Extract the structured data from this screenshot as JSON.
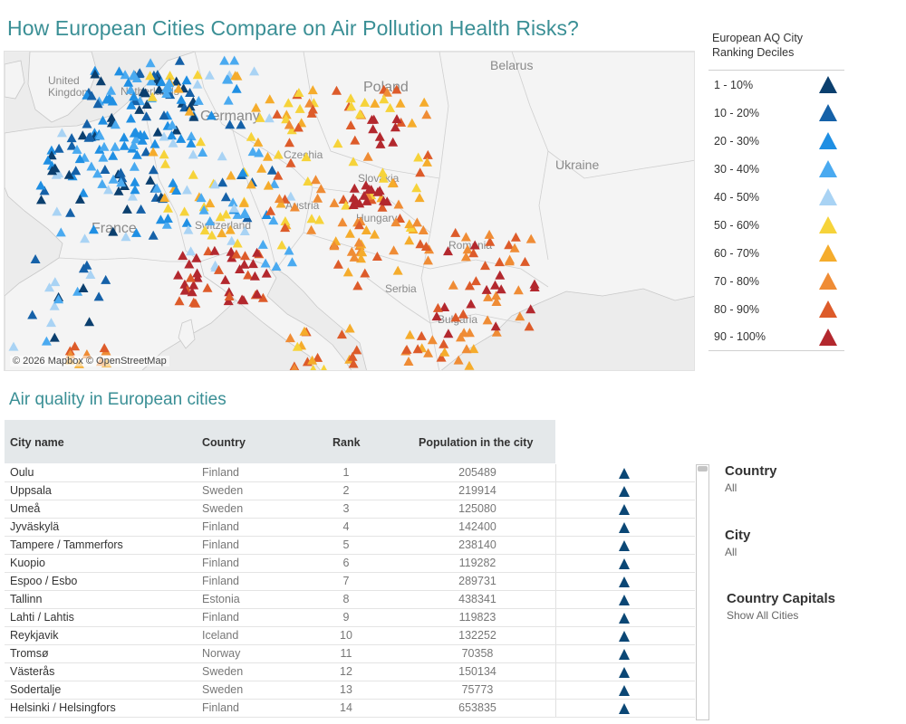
{
  "title": "How European Cities Compare on Air Pollution Health Risks?",
  "map": {
    "attribution": "© 2026 Mapbox © OpenStreetMap",
    "water_color": "#ececec",
    "land_color": "#f4f4f4",
    "labels": [
      {
        "text": "United\nKingdom",
        "kind": "country"
      },
      {
        "text": "Netherlands",
        "kind": "country"
      },
      {
        "text": "Germany",
        "kind": "country"
      },
      {
        "text": "Poland",
        "kind": "country"
      },
      {
        "text": "Belarus",
        "kind": "country"
      },
      {
        "text": "Ukraine",
        "kind": "country"
      },
      {
        "text": "France",
        "kind": "country"
      },
      {
        "text": "Czechia",
        "kind": "country"
      },
      {
        "text": "Slovakia",
        "kind": "country"
      },
      {
        "text": "Austria",
        "kind": "country"
      },
      {
        "text": "Switzerland",
        "kind": "country"
      },
      {
        "text": "Hungary",
        "kind": "country"
      },
      {
        "text": "Romania",
        "kind": "country"
      },
      {
        "text": "Serbia",
        "kind": "country"
      },
      {
        "text": "Bulgaria",
        "kind": "country"
      }
    ]
  },
  "legend": {
    "title": "European AQ City Ranking Deciles",
    "items": [
      {
        "label": "1 - 10%",
        "color": "#0b3f6e"
      },
      {
        "label": "10 - 20%",
        "color": "#1561a8"
      },
      {
        "label": "20 - 30%",
        "color": "#1f8fe3"
      },
      {
        "label": "30 - 40%",
        "color": "#4aaaf0"
      },
      {
        "label": "40 - 50%",
        "color": "#a9d3f4"
      },
      {
        "label": "50 - 60%",
        "color": "#f6d33a"
      },
      {
        "label": "60 - 70%",
        "color": "#f5ac2c"
      },
      {
        "label": "70 - 80%",
        "color": "#ef8c35"
      },
      {
        "label": "80 - 90%",
        "color": "#dd5b2a"
      },
      {
        "label": "90 - 100%",
        "color": "#b3282e"
      }
    ]
  },
  "table": {
    "subtitle": "Air quality in European cities",
    "headers": {
      "city": "City name",
      "country": "Country",
      "rank": "Rank",
      "population": "Population in the city"
    },
    "rows": [
      {
        "city": "Oulu",
        "country": "Finland",
        "rank": "1",
        "population": "205489",
        "decile_icon": "triangle-icon",
        "color": "#0b4775"
      },
      {
        "city": "Uppsala",
        "country": "Sweden",
        "rank": "2",
        "population": "219914",
        "decile_icon": "triangle-icon",
        "color": "#0b4775"
      },
      {
        "city": "Umeå",
        "country": "Sweden",
        "rank": "3",
        "population": "125080",
        "decile_icon": "triangle-icon",
        "color": "#0b4775"
      },
      {
        "city": "Jyväskylä",
        "country": "Finland",
        "rank": "4",
        "population": "142400",
        "decile_icon": "triangle-icon",
        "color": "#0b4775"
      },
      {
        "city": "Tampere / Tammerfors",
        "country": "Finland",
        "rank": "5",
        "population": "238140",
        "decile_icon": "triangle-icon",
        "color": "#0b4775"
      },
      {
        "city": "Kuopio",
        "country": "Finland",
        "rank": "6",
        "population": "119282",
        "decile_icon": "triangle-icon",
        "color": "#0b4775"
      },
      {
        "city": "Espoo / Esbo",
        "country": "Finland",
        "rank": "7",
        "population": "289731",
        "decile_icon": "triangle-icon",
        "color": "#0b4775"
      },
      {
        "city": "Tallinn",
        "country": "Estonia",
        "rank": "8",
        "population": "438341",
        "decile_icon": "triangle-icon",
        "color": "#0b4775"
      },
      {
        "city": "Lahti / Lahtis",
        "country": "Finland",
        "rank": "9",
        "population": "119823",
        "decile_icon": "triangle-icon",
        "color": "#0b4775"
      },
      {
        "city": "Reykjavik",
        "country": "Iceland",
        "rank": "10",
        "population": "132252",
        "decile_icon": "triangle-icon",
        "color": "#0b4775"
      },
      {
        "city": "Tromsø",
        "country": "Norway",
        "rank": "11",
        "population": "70358",
        "decile_icon": "triangle-icon",
        "color": "#0b4775"
      },
      {
        "city": "Västerås",
        "country": "Sweden",
        "rank": "12",
        "population": "150134",
        "decile_icon": "triangle-icon",
        "color": "#0b4775"
      },
      {
        "city": "Sodertalje",
        "country": "Sweden",
        "rank": "13",
        "population": "75773",
        "decile_icon": "triangle-icon",
        "color": "#0b4775"
      },
      {
        "city": "Helsinki / Helsingfors",
        "country": "Finland",
        "rank": "14",
        "population": "653835",
        "decile_icon": "triangle-icon",
        "color": "#0b4775"
      }
    ]
  },
  "filters": [
    {
      "label": "Country",
      "value": "All"
    },
    {
      "label": "City",
      "value": "All"
    },
    {
      "label": "Country Capitals",
      "value": "Show All Cities"
    }
  ]
}
